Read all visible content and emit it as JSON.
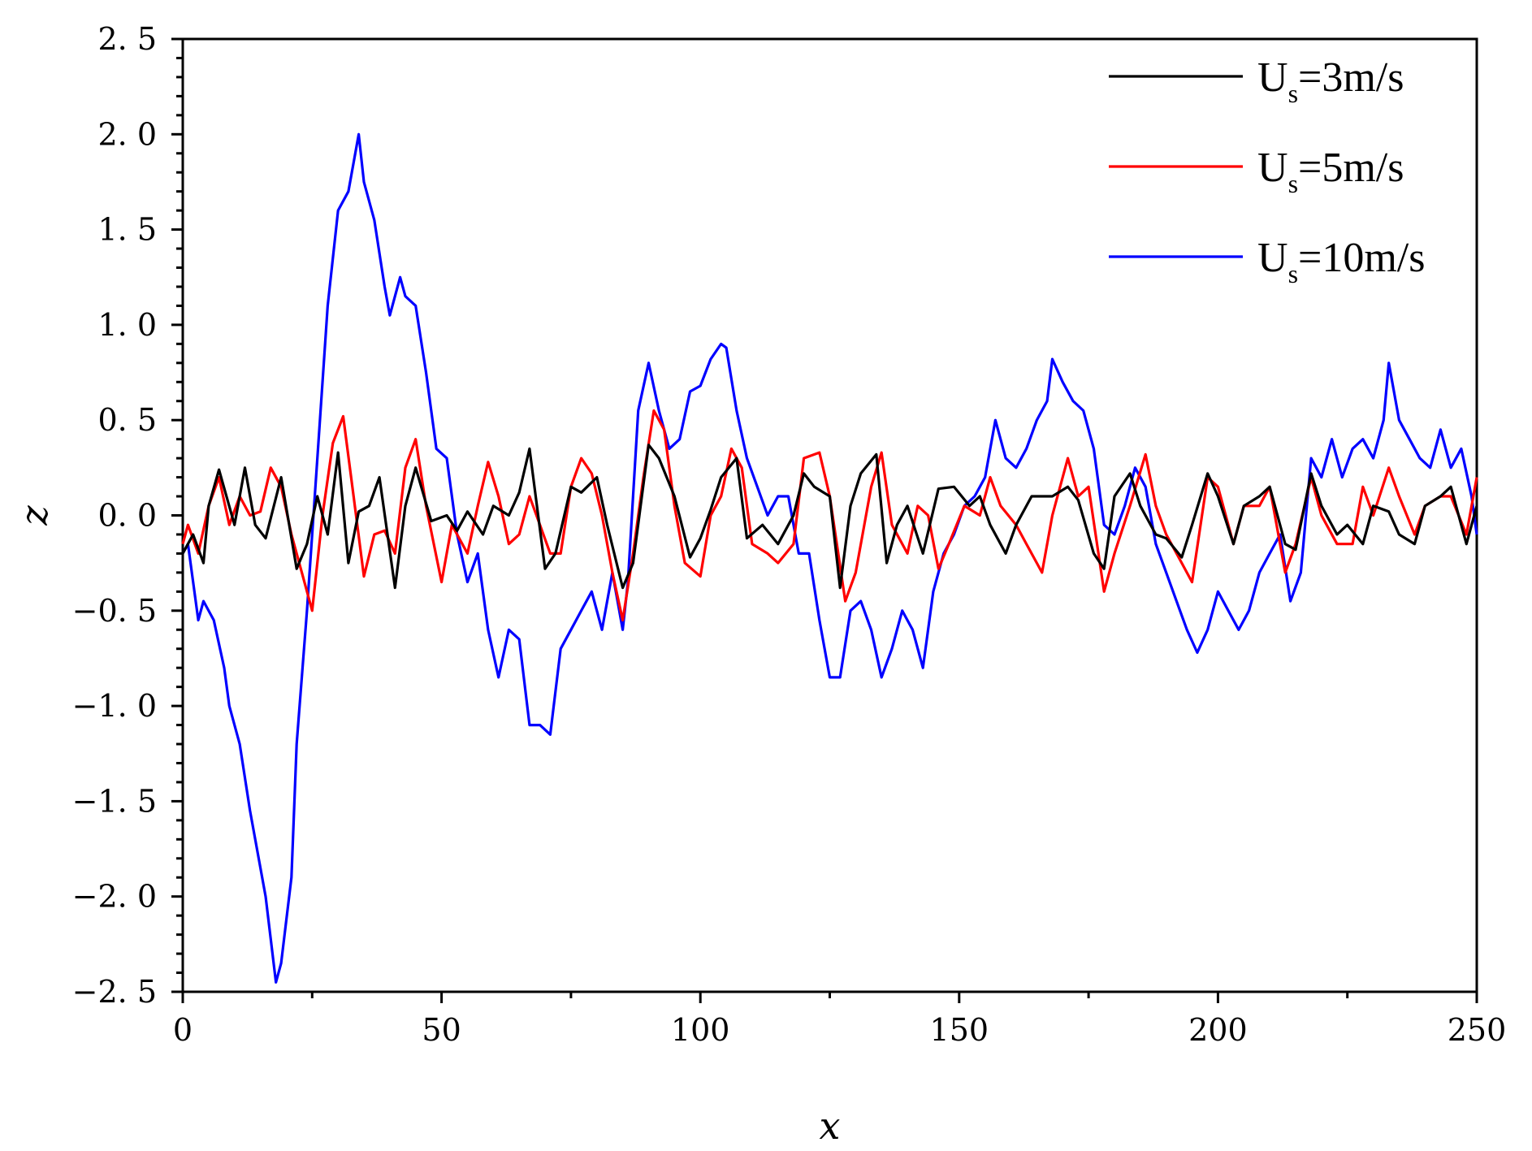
{
  "chart_data": {
    "type": "line",
    "title": "",
    "xlabel": "x",
    "ylabel": "z",
    "xlim": [
      0,
      250
    ],
    "ylim": [
      -2.5,
      2.5
    ],
    "xticks": [
      0,
      50,
      100,
      150,
      200,
      250
    ],
    "xtick_labels": [
      "0",
      "50",
      "100",
      "150",
      "200",
      "250"
    ],
    "yticks": [
      2.5,
      2.0,
      1.5,
      1.0,
      0.5,
      0.0,
      -0.5,
      -1.0,
      -1.5,
      -2.0,
      -2.5
    ],
    "ytick_labels": [
      "2. 5",
      "2. 0",
      "1. 5",
      "1. 0",
      "0. 5",
      "0. 0",
      "−0. 5",
      "−1. 0",
      "−1. 5",
      "−2. 0",
      "−2. 5"
    ],
    "grid": false,
    "legend_position": "top-right",
    "series": [
      {
        "name": "Us=3m/s",
        "legend_main": "U",
        "legend_sub": "s",
        "legend_rest": "=3m/s",
        "color": "#000000",
        "x": [
          0,
          2,
          4,
          5,
          7,
          10,
          12,
          14,
          16,
          19,
          22,
          24,
          26,
          28,
          30,
          32,
          34,
          36,
          38,
          41,
          43,
          45,
          48,
          51,
          53,
          55,
          58,
          60,
          63,
          65,
          67,
          70,
          72,
          75,
          77,
          80,
          82,
          85,
          87,
          90,
          92,
          95,
          98,
          100,
          102,
          104,
          107,
          109,
          112,
          115,
          118,
          120,
          122,
          125,
          127,
          129,
          131,
          134,
          136,
          138,
          140,
          143,
          146,
          149,
          152,
          154,
          156,
          159,
          161,
          164,
          166,
          168,
          171,
          173,
          176,
          178,
          180,
          183,
          185,
          188,
          190,
          193,
          195,
          198,
          200,
          203,
          205,
          208,
          210,
          213,
          215,
          218,
          220,
          223,
          225,
          228,
          230,
          233,
          235,
          238,
          240,
          243,
          245,
          248,
          250
        ],
        "y": [
          -0.2,
          -0.1,
          -0.25,
          0.05,
          0.24,
          -0.05,
          0.25,
          -0.05,
          -0.12,
          0.2,
          -0.28,
          -0.15,
          0.1,
          -0.1,
          0.33,
          -0.25,
          0.02,
          0.05,
          0.2,
          -0.38,
          0.05,
          0.25,
          -0.03,
          0.0,
          -0.08,
          0.02,
          -0.1,
          0.05,
          0.0,
          0.12,
          0.35,
          -0.28,
          -0.2,
          0.15,
          0.12,
          0.2,
          -0.05,
          -0.38,
          -0.25,
          0.37,
          0.3,
          0.1,
          -0.22,
          -0.12,
          0.03,
          0.2,
          0.3,
          -0.12,
          -0.05,
          -0.15,
          0.0,
          0.22,
          0.15,
          0.1,
          -0.38,
          0.05,
          0.22,
          0.32,
          -0.25,
          -0.05,
          0.05,
          -0.2,
          0.14,
          0.15,
          0.05,
          0.1,
          -0.05,
          -0.2,
          -0.05,
          0.1,
          0.1,
          0.1,
          0.15,
          0.08,
          -0.2,
          -0.28,
          0.1,
          0.22,
          0.05,
          -0.1,
          -0.12,
          -0.22,
          -0.05,
          0.22,
          0.1,
          -0.15,
          0.05,
          0.1,
          0.15,
          -0.15,
          -0.18,
          0.22,
          0.05,
          -0.1,
          -0.05,
          -0.15,
          0.05,
          0.02,
          -0.1,
          -0.15,
          0.05,
          0.1,
          0.15,
          -0.15,
          0.05
        ]
      },
      {
        "name": "Us=5m/s",
        "legend_main": "U",
        "legend_sub": "s",
        "legend_rest": "=5m/s",
        "color": "#ff0000",
        "x": [
          0,
          1,
          3,
          5,
          7,
          9,
          11,
          13,
          15,
          17,
          19,
          21,
          23,
          25,
          27,
          29,
          31,
          33,
          35,
          37,
          39,
          41,
          43,
          45,
          47,
          50,
          52,
          55,
          57,
          59,
          61,
          63,
          65,
          67,
          69,
          71,
          73,
          75,
          77,
          79,
          81,
          83,
          85,
          87,
          89,
          91,
          93,
          95,
          97,
          100,
          102,
          104,
          106,
          108,
          110,
          113,
          115,
          118,
          120,
          123,
          125,
          128,
          130,
          133,
          135,
          137,
          140,
          142,
          144,
          146,
          148,
          151,
          154,
          156,
          158,
          161,
          163,
          166,
          168,
          171,
          173,
          175,
          178,
          180,
          183,
          186,
          188,
          190,
          193,
          195,
          198,
          200,
          203,
          205,
          208,
          210,
          213,
          215,
          218,
          220,
          223,
          226,
          228,
          230,
          233,
          235,
          238,
          240,
          243,
          245,
          248,
          250
        ],
        "y": [
          -0.15,
          -0.05,
          -0.2,
          0.05,
          0.2,
          -0.05,
          0.1,
          0.0,
          0.02,
          0.25,
          0.15,
          -0.1,
          -0.3,
          -0.5,
          0.0,
          0.38,
          0.52,
          0.1,
          -0.32,
          -0.1,
          -0.08,
          -0.2,
          0.25,
          0.4,
          0.05,
          -0.35,
          -0.05,
          -0.2,
          0.05,
          0.28,
          0.1,
          -0.15,
          -0.1,
          0.1,
          -0.05,
          -0.2,
          -0.2,
          0.15,
          0.3,
          0.22,
          0.0,
          -0.3,
          -0.55,
          -0.2,
          0.2,
          0.55,
          0.45,
          0.05,
          -0.25,
          -0.32,
          0.0,
          0.1,
          0.35,
          0.25,
          -0.15,
          -0.2,
          -0.25,
          -0.15,
          0.3,
          0.33,
          0.1,
          -0.45,
          -0.3,
          0.15,
          0.33,
          -0.05,
          -0.2,
          0.05,
          0.0,
          -0.28,
          -0.15,
          0.05,
          0.0,
          0.2,
          0.05,
          -0.05,
          -0.15,
          -0.3,
          0.0,
          0.3,
          0.1,
          0.15,
          -0.4,
          -0.2,
          0.05,
          0.32,
          0.05,
          -0.1,
          -0.25,
          -0.35,
          0.2,
          0.15,
          -0.15,
          0.05,
          0.05,
          0.15,
          -0.3,
          -0.15,
          0.2,
          0.0,
          -0.15,
          -0.15,
          0.15,
          0.0,
          0.25,
          0.1,
          -0.1,
          0.05,
          0.1,
          0.1,
          -0.1,
          0.2
        ]
      },
      {
        "name": "Us=10m/s",
        "legend_main": "U",
        "legend_sub": "s",
        "legend_rest": "=10m/s",
        "color": "#0000ff",
        "x": [
          0,
          1,
          3,
          4,
          6,
          8,
          9,
          11,
          13,
          14,
          16,
          18,
          19,
          21,
          22,
          24,
          26,
          28,
          30,
          32,
          34,
          35,
          37,
          39,
          40,
          42,
          43,
          45,
          47,
          49,
          51,
          53,
          55,
          57,
          59,
          61,
          63,
          65,
          67,
          69,
          71,
          73,
          75,
          77,
          79,
          81,
          83,
          85,
          86,
          88,
          90,
          92,
          94,
          96,
          98,
          100,
          102,
          104,
          105,
          107,
          109,
          111,
          113,
          115,
          117,
          119,
          121,
          123,
          125,
          127,
          129,
          131,
          133,
          135,
          137,
          139,
          141,
          143,
          145,
          147,
          149,
          151,
          153,
          155,
          157,
          159,
          161,
          163,
          165,
          167,
          168,
          170,
          172,
          174,
          176,
          178,
          180,
          182,
          184,
          186,
          188,
          190,
          192,
          194,
          196,
          198,
          200,
          202,
          204,
          206,
          208,
          210,
          212,
          214,
          216,
          218,
          220,
          222,
          224,
          226,
          228,
          230,
          232,
          233,
          235,
          237,
          239,
          241,
          243,
          245,
          247,
          249,
          250
        ],
        "y": [
          -0.2,
          -0.15,
          -0.55,
          -0.45,
          -0.55,
          -0.8,
          -1.0,
          -1.2,
          -1.55,
          -1.7,
          -2.0,
          -2.45,
          -2.35,
          -1.9,
          -1.2,
          -0.5,
          0.3,
          1.1,
          1.6,
          1.7,
          2.0,
          1.75,
          1.55,
          1.2,
          1.05,
          1.25,
          1.15,
          1.1,
          0.75,
          0.35,
          0.3,
          -0.1,
          -0.35,
          -0.2,
          -0.6,
          -0.85,
          -0.6,
          -0.65,
          -1.1,
          -1.1,
          -1.15,
          -0.7,
          -0.6,
          -0.5,
          -0.4,
          -0.6,
          -0.3,
          -0.6,
          -0.35,
          0.55,
          0.8,
          0.55,
          0.35,
          0.4,
          0.65,
          0.68,
          0.82,
          0.9,
          0.88,
          0.55,
          0.3,
          0.15,
          0.0,
          0.1,
          0.1,
          -0.2,
          -0.2,
          -0.55,
          -0.85,
          -0.85,
          -0.5,
          -0.45,
          -0.6,
          -0.85,
          -0.7,
          -0.5,
          -0.6,
          -0.8,
          -0.4,
          -0.2,
          -0.1,
          0.05,
          0.1,
          0.2,
          0.5,
          0.3,
          0.25,
          0.35,
          0.5,
          0.6,
          0.82,
          0.7,
          0.6,
          0.55,
          0.35,
          -0.05,
          -0.1,
          0.05,
          0.25,
          0.15,
          -0.15,
          -0.3,
          -0.45,
          -0.6,
          -0.72,
          -0.6,
          -0.4,
          -0.5,
          -0.6,
          -0.5,
          -0.3,
          -0.2,
          -0.1,
          -0.45,
          -0.3,
          0.3,
          0.2,
          0.4,
          0.2,
          0.35,
          0.4,
          0.3,
          0.5,
          0.8,
          0.5,
          0.4,
          0.3,
          0.25,
          0.45,
          0.25,
          0.35,
          0.1,
          -0.1
        ]
      }
    ]
  }
}
